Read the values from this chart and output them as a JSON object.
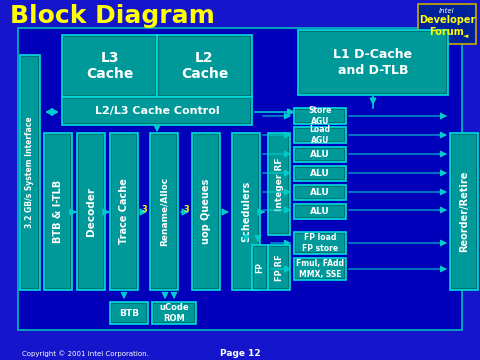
{
  "title": "Block Diagram",
  "bg_color": "#1515cc",
  "main_bg": "#0000aa",
  "teal_fill": "#007777",
  "teal_inner": "#009999",
  "teal_edge": "#00dddd",
  "light_teal": "#00cccc",
  "white": "#ffffff",
  "yellow": "#ffff00",
  "copyright": "Copyright © 2001 Intel Corporation.",
  "page": "Page 12"
}
